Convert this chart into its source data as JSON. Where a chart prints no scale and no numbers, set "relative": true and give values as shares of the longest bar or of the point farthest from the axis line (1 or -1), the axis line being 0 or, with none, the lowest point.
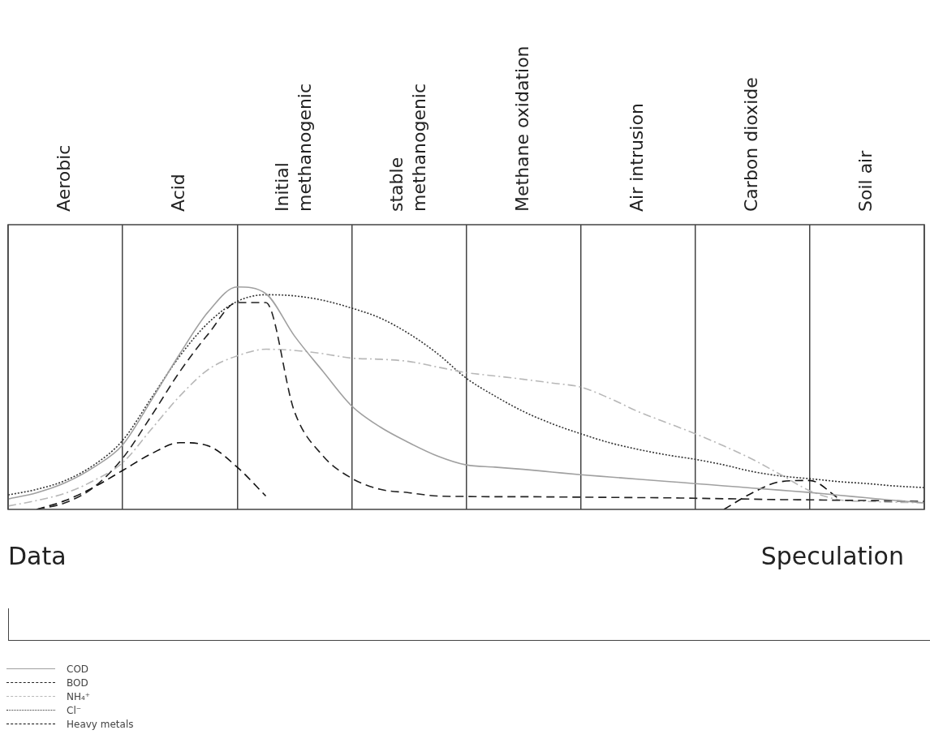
{
  "chart_data": {
    "type": "line",
    "relative": true,
    "tick_labels": "x",
    "grid": "x",
    "legend": "bottom left",
    "categories": [
      null,
      null,
      "Aerobic",
      null,
      null,
      null,
      "Acid",
      null,
      null,
      null,
      "Initial\nmethanogenic",
      null,
      null,
      null,
      "stable\nmethanogenic",
      null,
      null,
      null,
      "Methane oxidation",
      null,
      null,
      null,
      "Air intrusion",
      null,
      null,
      null,
      "Carbon dioxide",
      null,
      null,
      null,
      "Soil air",
      null,
      null
    ],
    "annotations": [
      "Data",
      "Speculation"
    ],
    "series": [
      {
        "name": "COD",
        "color": "#a0a0a0",
        "line_style": "solid",
        "values": [
          0.047,
          0.075,
          0.12,
          0.19,
          0.29,
          0.49,
          0.7,
          0.89,
          1,
          0.97,
          0.78,
          0.62,
          0.465,
          0.37,
          0.3,
          0.24,
          0.2,
          0.19,
          0.18,
          0.168,
          0.156,
          0.146,
          0.136,
          0.126,
          0.116,
          0.106,
          0.096,
          0.086,
          0.076,
          0.064,
          0.052,
          0.04,
          0.029
        ]
      },
      {
        "name": "BOD",
        "color": "#222222",
        "line_style": "dashed",
        "values": [
          null,
          0,
          0.03,
          0.1,
          0.23,
          0.42,
          0.62,
          0.79,
          0.93,
          0.93,
          0.44,
          0.24,
          0.14,
          0.09,
          0.075,
          0.06,
          0.058,
          0.057,
          0.057,
          0.056,
          0.055,
          0.054,
          0.053,
          0.052,
          0.05,
          0.048,
          0.046,
          0.044,
          0.043,
          0.041,
          0.04,
          0.038,
          0.036
        ]
      },
      {
        "name": "NH₄⁺",
        "color": "#b8b8b8",
        "line_style": "dashdot",
        "values": [
          0.015,
          0.04,
          0.073,
          0.13,
          0.21,
          0.36,
          0.51,
          0.63,
          0.69,
          0.72,
          0.715,
          0.7,
          0.68,
          0.675,
          0.665,
          0.64,
          0.615,
          0.6,
          0.585,
          0.568,
          0.55,
          0.5,
          0.44,
          0.39,
          0.34,
          0.285,
          0.225,
          0.155,
          0.084,
          0.044,
          0.036,
          0.032,
          0.03
        ]
      },
      {
        "name": "Cl⁻",
        "color": "#333333",
        "line_style": "dotted",
        "values": [
          0.065,
          0.09,
          0.13,
          0.2,
          0.31,
          0.5,
          0.69,
          0.84,
          0.935,
          0.965,
          0.96,
          0.94,
          0.905,
          0.86,
          0.79,
          0.7,
          0.59,
          0.51,
          0.44,
          0.385,
          0.34,
          0.3,
          0.27,
          0.245,
          0.225,
          0.2,
          0.17,
          0.15,
          0.138,
          0.125,
          0.116,
          0.105,
          0.098
        ]
      },
      {
        "name": "Heavy metals",
        "color": "#111111",
        "line_style": "dashed",
        "values": [
          null,
          0,
          0.04,
          0.1,
          0.175,
          0.25,
          0.3,
          0.285,
          0.19,
          0.06,
          null,
          null,
          null,
          null,
          null,
          null,
          null,
          null,
          null,
          null,
          null,
          null,
          null,
          null,
          null,
          0,
          0.075,
          0.125,
          0.13,
          0.05,
          null,
          null,
          null
        ]
      }
    ]
  }
}
